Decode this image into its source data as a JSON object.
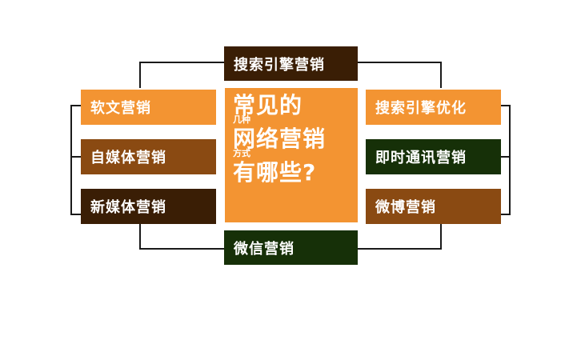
{
  "colors": {
    "orange": "#f39432",
    "brown": "#8a4a12",
    "dark_brown": "#3a1e05",
    "dark_green": "#163008",
    "connector": "#1a1a1a"
  },
  "center": {
    "line1": "常见的",
    "line1_small": "几种",
    "line2": "网络营销",
    "line2_small": "方式",
    "line3": "有哪些?"
  },
  "top": {
    "label": "搜索引擎营销"
  },
  "bottom": {
    "label": "微信营销"
  },
  "left": {
    "items": [
      {
        "label": "软文营销"
      },
      {
        "label": "自媒体营销"
      },
      {
        "label": "新媒体营销"
      }
    ]
  },
  "right": {
    "items": [
      {
        "label": "搜索引擎优化"
      },
      {
        "label": "即时通讯营销"
      },
      {
        "label": "微博营销"
      }
    ]
  }
}
